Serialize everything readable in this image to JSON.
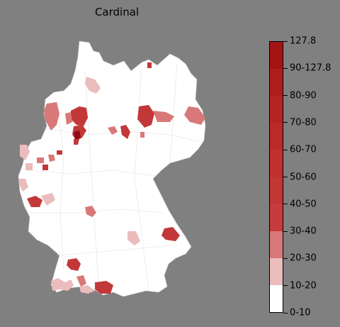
{
  "title": "Cardinal",
  "legend": {
    "labels": [
      "0-10",
      "10-20",
      "20-30",
      "30-40",
      "40-50",
      "50-60",
      "60-70",
      "70-80",
      "80-90",
      "90-127.8",
      "127.8"
    ],
    "colors": [
      "#ffffff",
      "#ebbcbc",
      "#d97878",
      "#c63c3c",
      "#c33636",
      "#bf3030",
      "#bb2a2a",
      "#b62424",
      "#b01d1d",
      "#a31515",
      "#8f0b1a"
    ]
  },
  "map_colors": {
    "land": "#ffffff",
    "border": "#c8c8c8",
    "light": "#ebbcbc",
    "medium": "#d97878",
    "strong": "#c23838",
    "darkest": "#8f0b1a"
  }
}
